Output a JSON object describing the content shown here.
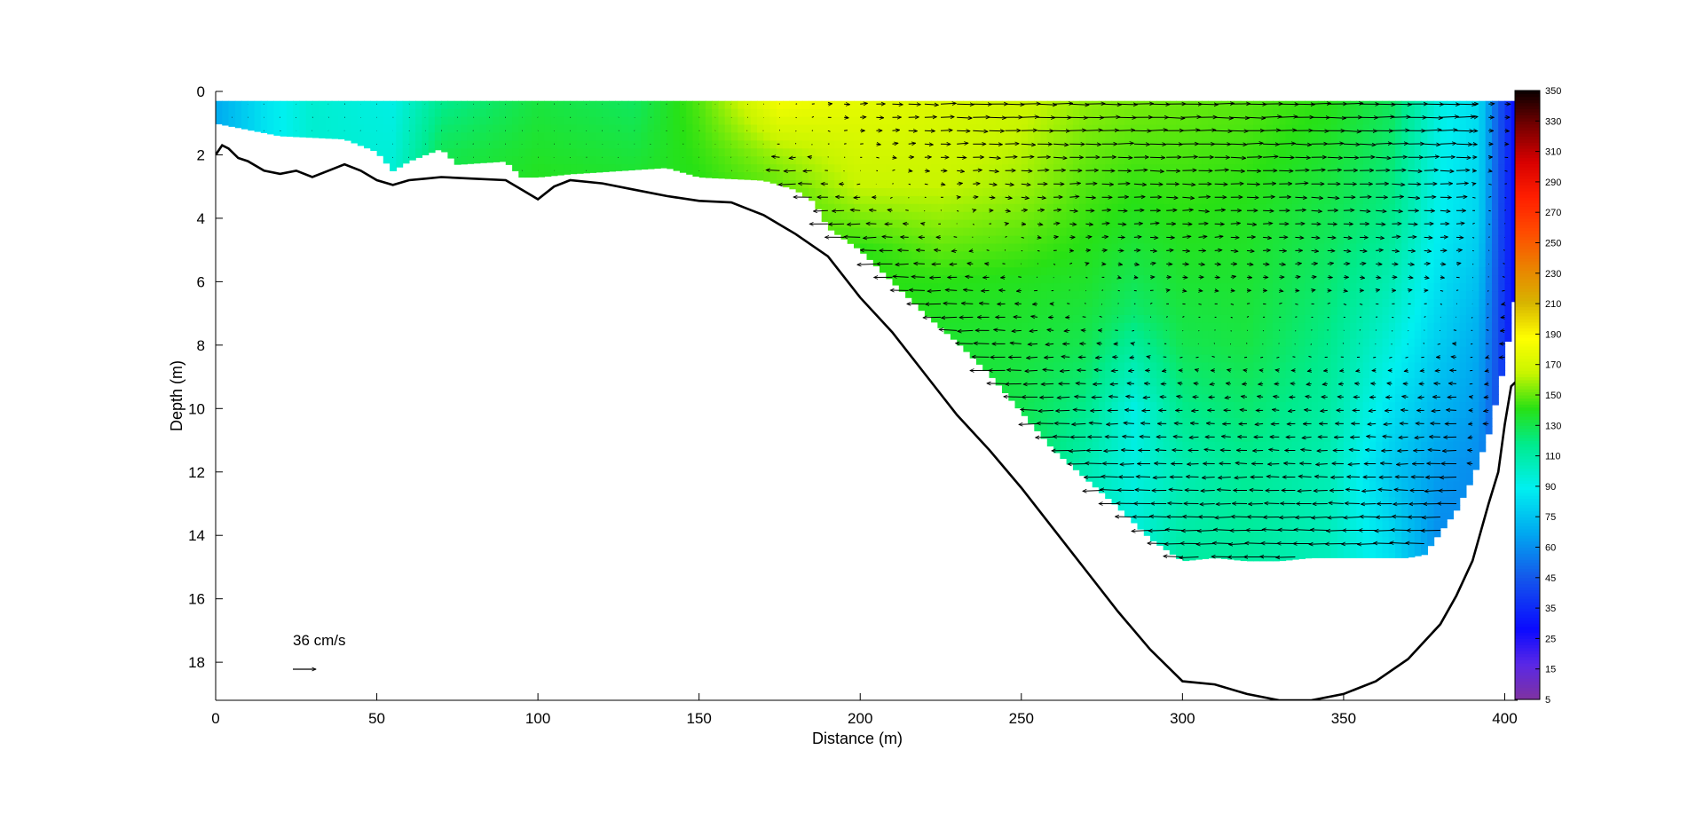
{
  "chart_data": {
    "type": "heatmap",
    "title": "",
    "xlabel": "Distance (m)",
    "ylabel": "Depth (m)",
    "xlim": [
      0,
      404
    ],
    "ylim": [
      19.2,
      0
    ],
    "x_ticks": [
      0,
      50,
      100,
      150,
      200,
      250,
      300,
      350,
      400
    ],
    "y_ticks": [
      0,
      2,
      4,
      6,
      8,
      10,
      12,
      14,
      16,
      18
    ],
    "colorbar": {
      "ticks": [
        5,
        15,
        25,
        35,
        45,
        60,
        75,
        90,
        110,
        130,
        150,
        170,
        190,
        210,
        230,
        250,
        270,
        290,
        310,
        330,
        350
      ],
      "range": [
        5,
        350
      ]
    },
    "scale_arrow": {
      "label": "36 cm/s",
      "speed_cm_s": 36
    },
    "bathymetry": {
      "distance": [
        0,
        2,
        4,
        7,
        10,
        15,
        20,
        25,
        30,
        35,
        40,
        45,
        50,
        55,
        60,
        65,
        70,
        80,
        90,
        95,
        100,
        105,
        110,
        120,
        130,
        140,
        150,
        160,
        165,
        170,
        180,
        190,
        200,
        210,
        220,
        230,
        240,
        250,
        260,
        270,
        280,
        290,
        300,
        310,
        320,
        330,
        340,
        350,
        360,
        370,
        380,
        385,
        390,
        395,
        398,
        400,
        402,
        404
      ],
      "depth": [
        2.0,
        1.7,
        1.8,
        2.1,
        2.2,
        2.5,
        2.6,
        2.5,
        2.7,
        2.5,
        2.3,
        2.5,
        2.8,
        2.95,
        2.8,
        2.75,
        2.7,
        2.75,
        2.8,
        3.1,
        3.4,
        3.0,
        2.8,
        2.9,
        3.1,
        3.3,
        3.45,
        3.5,
        3.7,
        3.9,
        4.5,
        5.2,
        6.5,
        7.6,
        8.9,
        10.2,
        11.3,
        12.5,
        13.8,
        15.1,
        16.4,
        17.6,
        18.6,
        18.7,
        19.0,
        19.2,
        19.2,
        19.0,
        18.6,
        17.9,
        16.8,
        15.9,
        14.8,
        13.0,
        12.0,
        10.5,
        9.3,
        9.1
      ]
    },
    "direction_field": {
      "bottom_distance": [
        0,
        10,
        20,
        40,
        50,
        55,
        60,
        70,
        75,
        90,
        95,
        100,
        110,
        140,
        150,
        170,
        180,
        186,
        190,
        200,
        210,
        220,
        230,
        240,
        250,
        260,
        270,
        280,
        290,
        300,
        310,
        320,
        330,
        340,
        350,
        360,
        370,
        375,
        380,
        385,
        390,
        395,
        400,
        404
      ],
      "bottom_depth": [
        1.0,
        1.2,
        1.4,
        1.5,
        1.9,
        2.5,
        2.2,
        1.8,
        2.3,
        2.2,
        2.7,
        2.7,
        2.6,
        2.4,
        2.7,
        2.8,
        3.1,
        3.5,
        4.3,
        5.0,
        6.0,
        7.0,
        7.9,
        8.9,
        10.1,
        11.3,
        12.2,
        13.1,
        14.1,
        14.8,
        14.7,
        14.8,
        14.8,
        14.7,
        14.7,
        14.7,
        14.7,
        14.6,
        13.9,
        13.2,
        12.2,
        10.8,
        8.5,
        6.0
      ],
      "surface_depth": 0.3,
      "anchors": [
        {
          "distance": 0,
          "depths": [
            0.4,
            1.2
          ],
          "values": [
            100,
            100
          ]
        },
        {
          "distance": 15,
          "depths": [
            0.4,
            1.2
          ],
          "values": [
            120,
            120
          ]
        },
        {
          "distance": 30,
          "depths": [
            0.4,
            1.5
          ],
          "values": [
            133,
            133
          ]
        },
        {
          "distance": 55,
          "depths": [
            0.4,
            2.5
          ],
          "values": [
            128,
            132
          ]
        },
        {
          "distance": 70,
          "depths": [
            0.4,
            2.0
          ],
          "values": [
            150,
            160
          ]
        },
        {
          "distance": 100,
          "depths": [
            0.4,
            2.7
          ],
          "values": [
            163,
            168
          ]
        },
        {
          "distance": 130,
          "depths": [
            0.4,
            2.5
          ],
          "values": [
            158,
            165
          ]
        },
        {
          "distance": 150,
          "depths": [
            0.4,
            2.7
          ],
          "values": [
            175,
            170
          ]
        },
        {
          "distance": 175,
          "depths": [
            0.4,
            2.0,
            3.3
          ],
          "values": [
            205,
            185,
            175
          ]
        },
        {
          "distance": 200,
          "depths": [
            0.4,
            3.0,
            5.0
          ],
          "values": [
            200,
            190,
            170
          ]
        },
        {
          "distance": 225,
          "depths": [
            0.4,
            3.0,
            6.0,
            8.0
          ],
          "values": [
            197,
            190,
            170,
            165
          ]
        },
        {
          "distance": 250,
          "depths": [
            0.4,
            3.0,
            6.0,
            10.0
          ],
          "values": [
            192,
            185,
            168,
            160
          ]
        },
        {
          "distance": 270,
          "depths": [
            0.4,
            4.0,
            8.0,
            12.0
          ],
          "values": [
            183,
            172,
            160,
            140
          ]
        },
        {
          "distance": 285,
          "depths": [
            0.4,
            4.0,
            7.0,
            10.0,
            13.0
          ],
          "values": [
            180,
            168,
            155,
            128,
            130
          ]
        },
        {
          "distance": 300,
          "depths": [
            0.4,
            4.0,
            8.0,
            12.0,
            15.0
          ],
          "values": [
            178,
            170,
            160,
            140,
            145
          ]
        },
        {
          "distance": 320,
          "depths": [
            0.4,
            4.0,
            8.0,
            12.0,
            15.0
          ],
          "values": [
            176,
            168,
            162,
            148,
            145
          ]
        },
        {
          "distance": 345,
          "depths": [
            0.4,
            4.0,
            8.0,
            12.0,
            15.0
          ],
          "values": [
            170,
            160,
            150,
            140,
            138
          ]
        },
        {
          "distance": 365,
          "depths": [
            0.4,
            4.0,
            8.0,
            12.0,
            15.0
          ],
          "values": [
            158,
            150,
            130,
            110,
            120
          ]
        },
        {
          "distance": 380,
          "depths": [
            0.4,
            4.0,
            8.0,
            12.0,
            14.0
          ],
          "values": [
            128,
            125,
            112,
            95,
            90
          ]
        },
        {
          "distance": 392,
          "depths": [
            0.4,
            4.0,
            8.0,
            12.0
          ],
          "values": [
            118,
            115,
            100,
            90
          ]
        },
        {
          "distance": 398,
          "depths": [
            0.4,
            6.0
          ],
          "values": [
            75,
            70
          ]
        },
        {
          "distance": 403,
          "depths": [
            0.4,
            6.0
          ],
          "values": [
            48,
            45
          ]
        }
      ]
    },
    "velocity_arrows": {
      "region_distance": [
        175,
        400
      ],
      "surface_eastward_max_cm_s": 32,
      "bottom_westward_max_cm_s": 38
    }
  }
}
